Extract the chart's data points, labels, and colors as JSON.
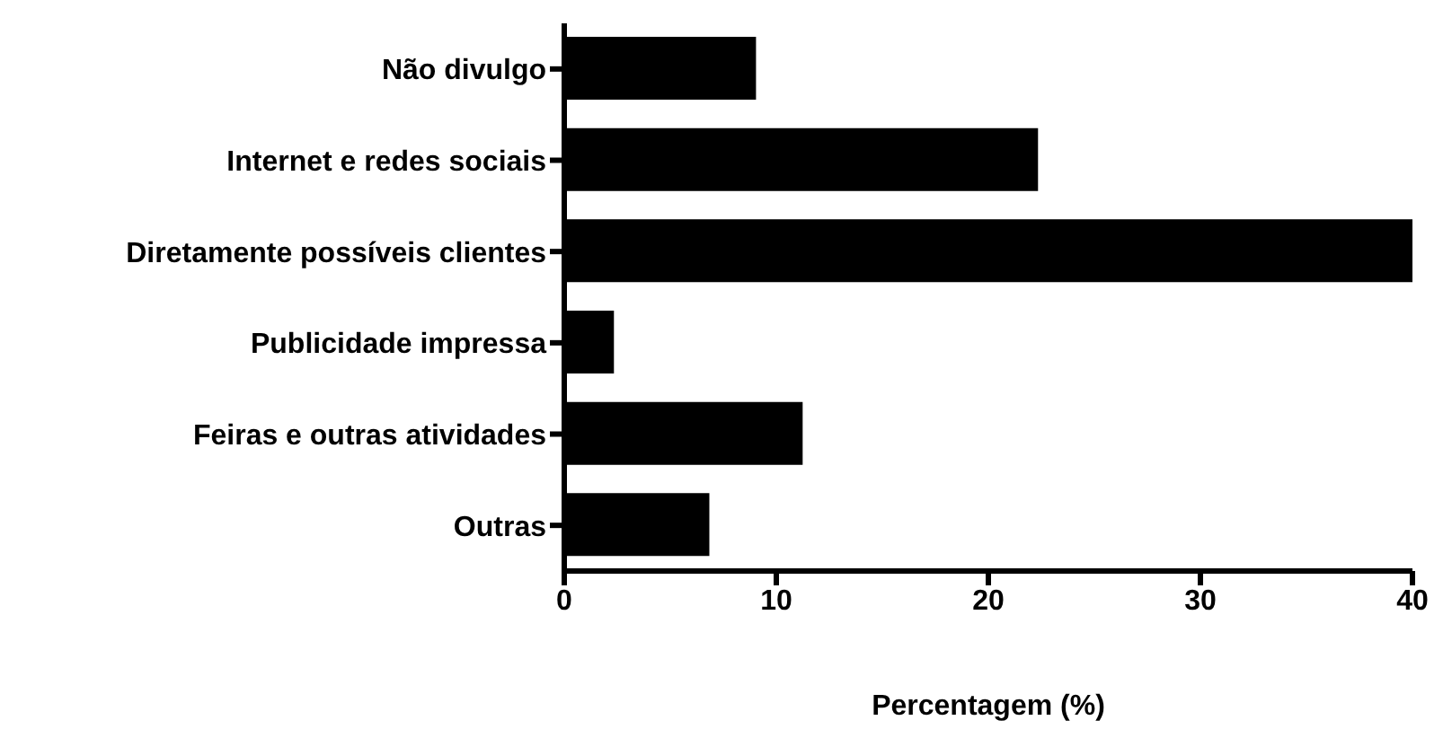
{
  "chart_data": {
    "type": "bar",
    "orientation": "horizontal",
    "categories": [
      "Não divulgo",
      "Internet e redes sociais",
      "Diretamente possíveis clientes",
      "Publicidade impressa",
      "Feiras e outras atividades",
      "Outras"
    ],
    "values": [
      9.0,
      22.3,
      40,
      2.3,
      11.2,
      6.8
    ],
    "color": "#000000",
    "xlabel": "Percentagem (%)",
    "xlim": [
      0,
      40
    ],
    "xticks": [
      0,
      10,
      20,
      30,
      40
    ],
    "grid": false,
    "legend": false
  }
}
